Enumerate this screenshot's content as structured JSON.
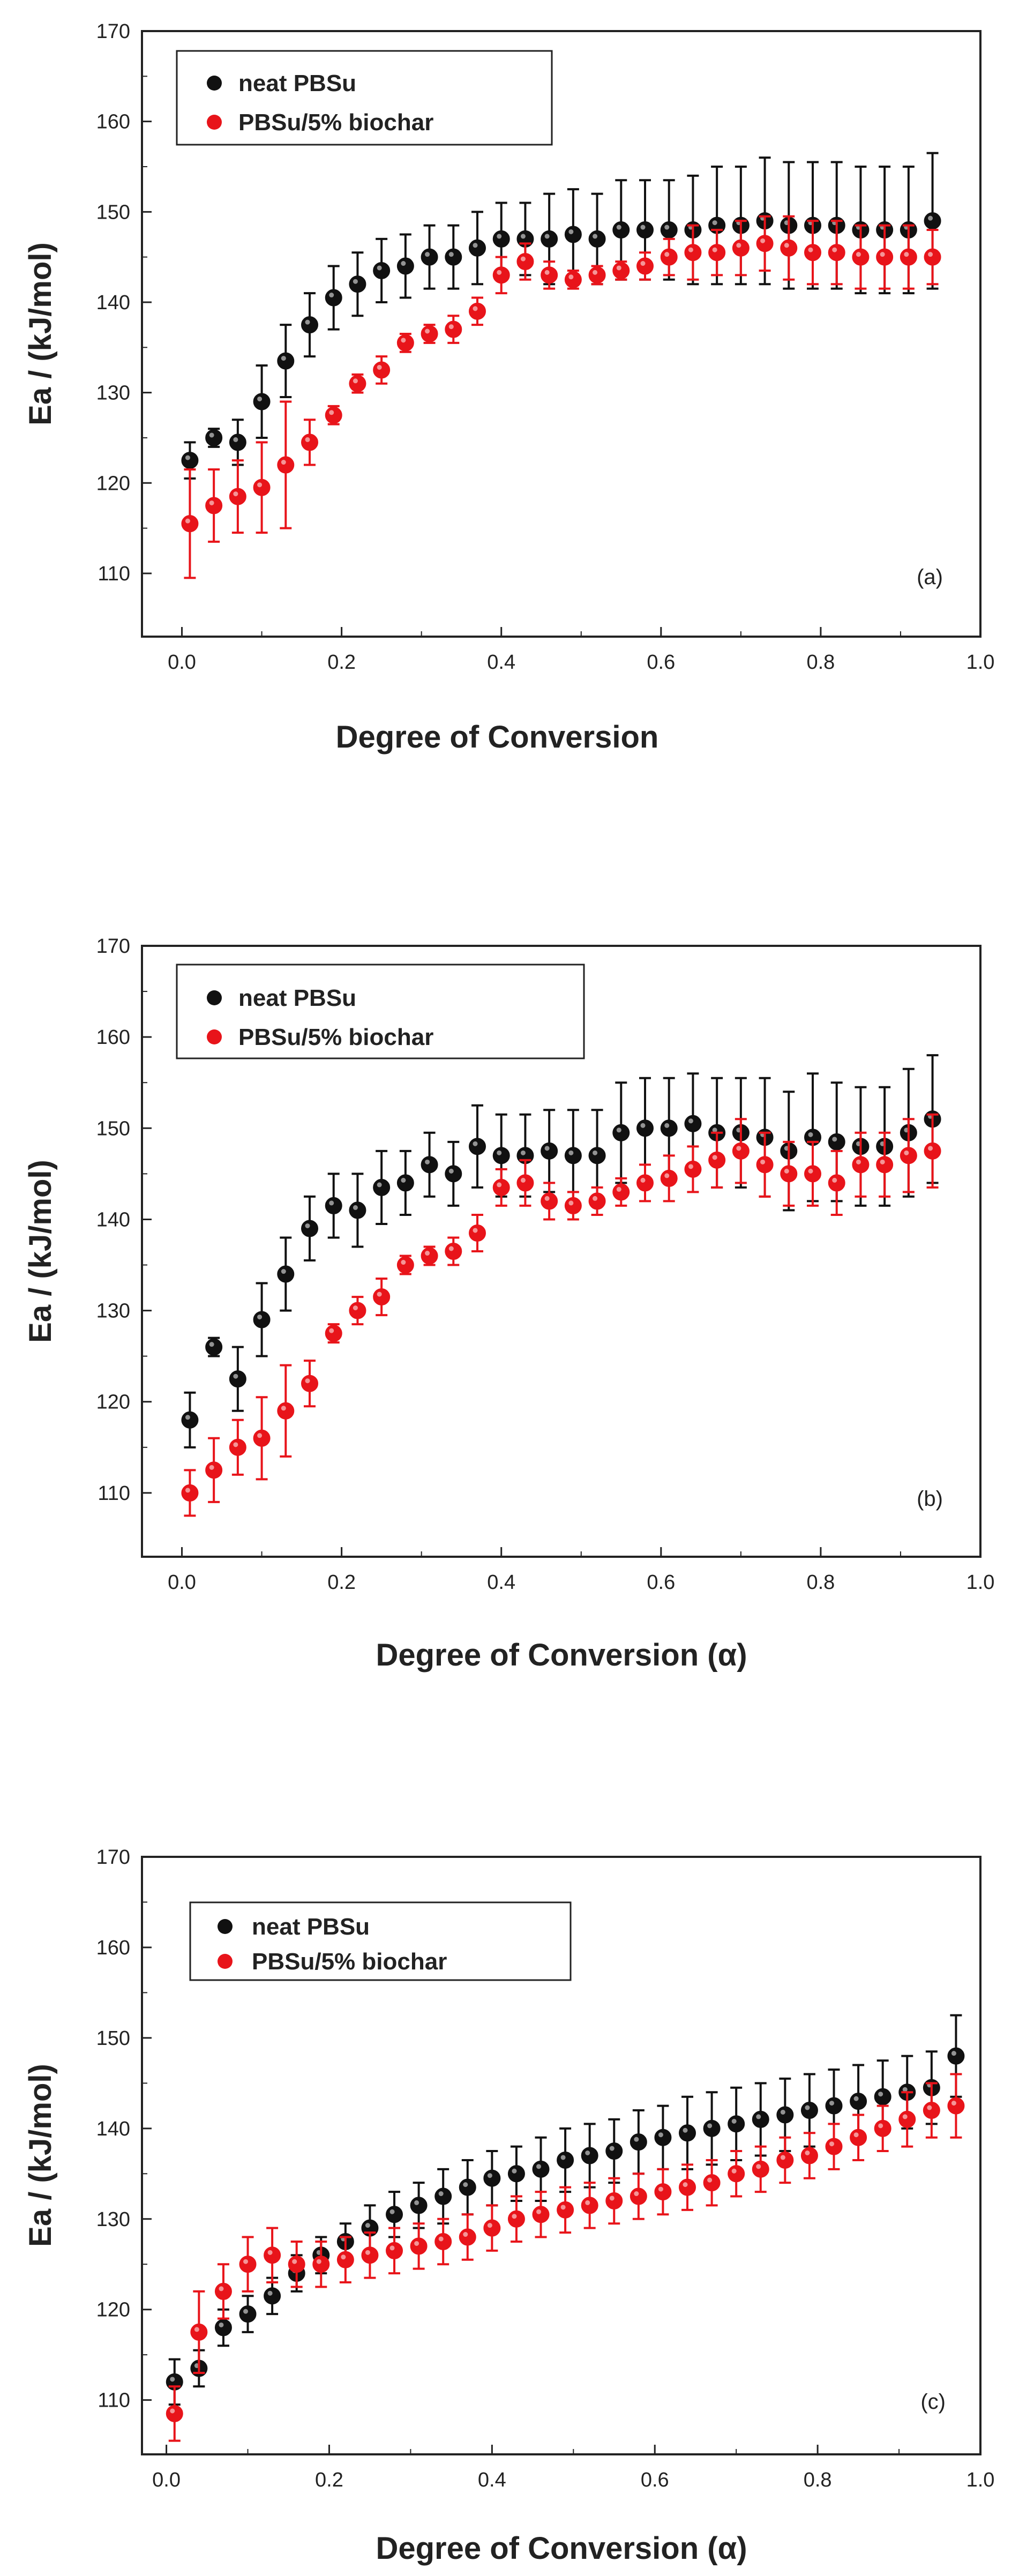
{
  "colors": {
    "series_neat": "#111111",
    "series_biochar": "#e8141a",
    "axis": "#222222"
  },
  "chart_data": [
    {
      "type": "scatter",
      "panel_label": "(a)",
      "xlabel": "Degree of Conversion",
      "ylabel": "Ea / (kJ/mol)",
      "xlim": [
        -0.05,
        1.0
      ],
      "ylim": [
        103,
        170
      ],
      "xticks": [
        "0.0",
        "0.2",
        "0.4",
        "0.6",
        "0.8",
        "1.0"
      ],
      "yticks": [
        "110",
        "120",
        "130",
        "140",
        "150",
        "160",
        "170"
      ],
      "legend_position": "top-left",
      "x": [
        0.01,
        0.04,
        0.07,
        0.1,
        0.13,
        0.16,
        0.19,
        0.22,
        0.25,
        0.28,
        0.31,
        0.34,
        0.37,
        0.4,
        0.43,
        0.46,
        0.49,
        0.52,
        0.55,
        0.58,
        0.61,
        0.64,
        0.67,
        0.7,
        0.73,
        0.76,
        0.79,
        0.82,
        0.85,
        0.88,
        0.91,
        0.94
      ],
      "series": [
        {
          "name": "neat PBSu",
          "values": [
            122.5,
            125,
            124.5,
            129,
            133.5,
            137.5,
            140.5,
            142,
            143.5,
            144,
            145,
            145,
            146,
            147,
            147,
            147,
            147.5,
            147,
            148,
            148,
            148,
            148,
            148.5,
            148.5,
            149,
            148.5,
            148.5,
            148.5,
            148,
            148,
            148,
            149
          ],
          "errors": [
            2,
            1,
            2.5,
            4,
            4,
            3.5,
            3.5,
            3.5,
            3.5,
            3.5,
            3.5,
            3.5,
            4,
            4,
            4,
            5,
            5,
            5,
            5.5,
            5.5,
            5.5,
            6,
            6.5,
            6.5,
            7,
            7,
            7,
            7,
            7,
            7,
            7,
            7.5
          ]
        },
        {
          "name": "PBSu/5% biochar",
          "values": [
            115.5,
            117.5,
            118.5,
            119.5,
            122,
            124.5,
            127.5,
            131,
            132.5,
            135.5,
            136.5,
            137,
            139,
            143,
            144.5,
            143,
            142.5,
            143,
            143.5,
            144,
            145,
            145.5,
            145.5,
            146,
            146.5,
            146,
            145.5,
            145.5,
            145,
            145,
            145,
            145
          ],
          "errors": [
            6,
            4,
            4,
            5,
            7,
            2.5,
            1,
            1,
            1.5,
            1,
            1,
            1.5,
            1.5,
            2,
            2,
            1.5,
            1,
            1,
            1,
            1.5,
            2,
            3,
            2.5,
            3,
            3,
            3.5,
            3.5,
            3.5,
            3.5,
            3.5,
            3.5,
            3
          ]
        }
      ]
    },
    {
      "type": "scatter",
      "panel_label": "(b)",
      "xlabel": "Degree of Conversion (α)",
      "ylabel": "Ea / (kJ/mol)",
      "xlim": [
        -0.05,
        1.0
      ],
      "ylim": [
        103,
        170
      ],
      "xticks": [
        "0.0",
        "0.2",
        "0.4",
        "0.6",
        "0.8",
        "1.0"
      ],
      "yticks": [
        "110",
        "120",
        "130",
        "140",
        "150",
        "160",
        "170"
      ],
      "legend_position": "top-left",
      "x": [
        0.01,
        0.04,
        0.07,
        0.1,
        0.13,
        0.16,
        0.19,
        0.22,
        0.25,
        0.28,
        0.31,
        0.34,
        0.37,
        0.4,
        0.43,
        0.46,
        0.49,
        0.52,
        0.55,
        0.58,
        0.61,
        0.64,
        0.67,
        0.7,
        0.73,
        0.76,
        0.79,
        0.82,
        0.85,
        0.88,
        0.91,
        0.94
      ],
      "series": [
        {
          "name": "neat PBSu",
          "values": [
            118,
            126,
            122.5,
            129,
            134,
            139,
            141.5,
            141,
            143.5,
            144,
            146,
            145,
            148,
            147,
            147,
            147.5,
            147,
            147,
            149.5,
            150,
            150,
            150.5,
            149.5,
            149.5,
            149,
            147.5,
            149,
            148.5,
            148,
            148,
            149.5,
            151
          ],
          "errors": [
            3,
            1,
            3.5,
            4,
            4,
            3.5,
            3.5,
            4,
            4,
            3.5,
            3.5,
            3.5,
            4.5,
            4.5,
            4.5,
            4.5,
            5,
            5,
            5.5,
            5.5,
            5.5,
            5.5,
            6,
            6,
            6.5,
            6.5,
            7,
            6.5,
            6.5,
            6.5,
            7,
            7
          ]
        },
        {
          "name": "PBSu/5% biochar",
          "values": [
            110,
            112.5,
            115,
            116,
            119,
            122,
            127.5,
            130,
            131.5,
            135,
            136,
            136.5,
            138.5,
            143.5,
            144,
            142,
            141.5,
            142,
            143,
            144,
            144.5,
            145.5,
            146.5,
            147.5,
            146,
            145,
            145,
            144,
            146,
            146,
            147,
            147.5
          ],
          "errors": [
            2.5,
            3.5,
            3,
            4.5,
            5,
            2.5,
            1,
            1.5,
            2,
            1,
            1,
            1.5,
            2,
            2,
            2.5,
            2,
            1.5,
            1.5,
            1.5,
            2,
            2.5,
            2.5,
            3,
            3.5,
            3.5,
            3.5,
            3.5,
            3.5,
            3.5,
            3.5,
            4,
            4
          ]
        }
      ]
    },
    {
      "type": "scatter",
      "panel_label": "(c)",
      "xlabel": "Degree of Conversion (α)",
      "ylabel": "Ea / (kJ/mol)",
      "xlim": [
        -0.03,
        1.0
      ],
      "ylim": [
        104,
        170
      ],
      "xticks": [
        "0.0",
        "0.2",
        "0.4",
        "0.6",
        "0.8",
        "1.0"
      ],
      "yticks": [
        "110",
        "120",
        "130",
        "140",
        "150",
        "160",
        "170"
      ],
      "legend_position": "top-left",
      "x": [
        0.01,
        0.04,
        0.07,
        0.1,
        0.13,
        0.16,
        0.19,
        0.22,
        0.25,
        0.28,
        0.31,
        0.34,
        0.37,
        0.4,
        0.43,
        0.46,
        0.49,
        0.52,
        0.55,
        0.58,
        0.61,
        0.64,
        0.67,
        0.7,
        0.73,
        0.76,
        0.79,
        0.82,
        0.85,
        0.88,
        0.91,
        0.94,
        0.97
      ],
      "series": [
        {
          "name": "neat PBSu",
          "values": [
            112,
            113.5,
            118,
            119.5,
            121.5,
            124,
            126,
            127.5,
            129,
            130.5,
            131.5,
            132.5,
            133.5,
            134.5,
            135,
            135.5,
            136.5,
            137,
            137.5,
            138.5,
            139,
            139.5,
            140,
            140.5,
            141,
            141.5,
            142,
            142.5,
            143,
            143.5,
            144,
            144.5,
            148
          ],
          "errors": [
            2.5,
            2,
            2,
            2,
            2,
            2,
            2,
            2,
            2.5,
            2.5,
            2.5,
            3,
            3,
            3,
            3,
            3.5,
            3.5,
            3.5,
            3.5,
            3.5,
            3.5,
            4,
            4,
            4,
            4,
            4,
            4,
            4,
            4,
            4,
            4,
            4,
            4.5
          ]
        },
        {
          "name": "PBSu/5% biochar",
          "values": [
            108.5,
            117.5,
            122,
            125,
            126,
            125,
            125,
            125.5,
            126,
            126.5,
            127,
            127.5,
            128,
            129,
            130,
            130.5,
            131,
            131.5,
            132,
            132.5,
            133,
            133.5,
            134,
            135,
            135.5,
            136.5,
            137,
            138,
            139,
            140,
            141,
            142,
            142.5
          ],
          "errors": [
            3,
            4.5,
            3,
            3,
            3,
            2.5,
            2.5,
            2.5,
            2.5,
            2.5,
            2.5,
            2.5,
            2.5,
            2.5,
            2.5,
            2.5,
            2.5,
            2.5,
            2.5,
            2.5,
            2.5,
            2.5,
            2.5,
            2.5,
            2.5,
            2.5,
            2.5,
            2.5,
            2.5,
            2.5,
            3,
            3,
            3.5
          ]
        }
      ]
    }
  ]
}
